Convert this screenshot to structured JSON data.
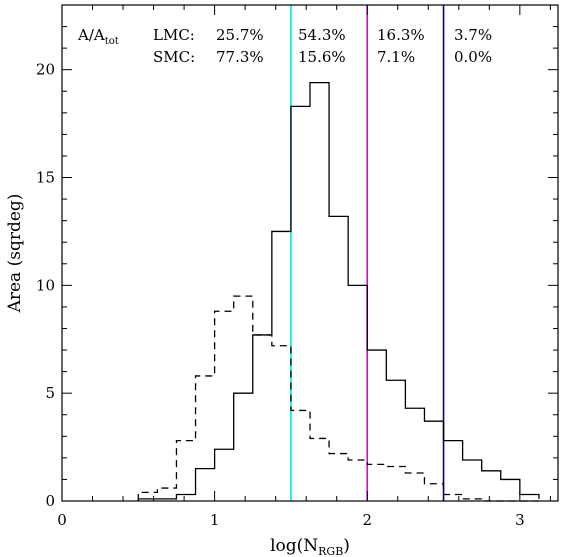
{
  "chart_data": {
    "type": "step",
    "xlabel": "log(N",
    "xlabel_sub": "RGB",
    "xlabel_close": ")",
    "ylabel": "Area (sqrdeg)",
    "xlim": [
      0,
      3.25
    ],
    "ylim": [
      0,
      23
    ],
    "x_ticks": [
      0,
      1,
      2,
      3
    ],
    "y_ticks": [
      0,
      5,
      10,
      15,
      20
    ],
    "bin_edges": [
      0.5,
      0.625,
      0.75,
      0.875,
      1.0,
      1.125,
      1.25,
      1.375,
      1.5,
      1.625,
      1.75,
      1.875,
      2.0,
      2.125,
      2.25,
      2.375,
      2.5,
      2.625,
      2.75,
      2.875,
      3.0,
      3.125
    ],
    "series": [
      {
        "name": "LMC",
        "style": "solid",
        "values": [
          0.1,
          0.1,
          0.3,
          1.5,
          2.4,
          5.0,
          7.7,
          12.5,
          18.3,
          19.4,
          13.2,
          10.0,
          7.0,
          5.6,
          4.3,
          3.7,
          2.8,
          1.9,
          1.4,
          1.0,
          0.3,
          0.1
        ]
      },
      {
        "name": "SMC",
        "style": "dashed",
        "values": [
          0.4,
          0.6,
          2.8,
          5.8,
          8.8,
          9.5,
          7.7,
          7.2,
          4.2,
          2.9,
          2.2,
          1.9,
          1.7,
          1.6,
          1.3,
          0.8,
          0.3,
          0.1,
          0.0,
          0.0,
          0.0,
          0.0
        ]
      }
    ],
    "vlines": [
      {
        "x": 1.5,
        "color": "#00e5e5"
      },
      {
        "x": 2.0,
        "color": "#e000e0"
      },
      {
        "x": 2.5,
        "color": "#000080"
      }
    ],
    "annotation": {
      "header": "A/A",
      "header_sub": "tot",
      "rows": [
        {
          "label": "LMC:",
          "values": [
            "25.7%",
            "54.3%",
            "16.3%",
            "3.7%"
          ]
        },
        {
          "label": "SMC:",
          "values": [
            "77.3%",
            "15.6%",
            "7.1%",
            "0.0%"
          ]
        }
      ]
    }
  }
}
